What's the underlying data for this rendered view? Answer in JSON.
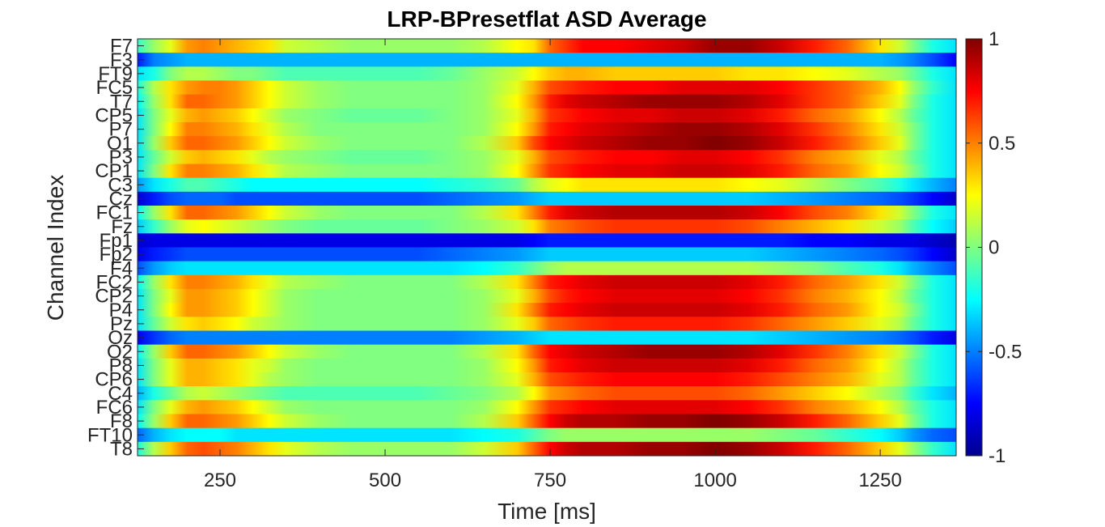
{
  "chart_data": {
    "type": "heatmap",
    "title": "LRP-BPresetflat ASD Average",
    "xlabel": "Time [ms]",
    "ylabel": "Channel Index",
    "xlim": [
      125,
      1365
    ],
    "xticks": [
      250,
      500,
      750,
      1000,
      1250
    ],
    "channels": [
      "F7",
      "F3",
      "FT9",
      "FC5",
      "T7",
      "CP5",
      "P7",
      "O1",
      "P3",
      "CP1",
      "C3",
      "Cz",
      "FC1",
      "Fz",
      "Fp1",
      "Fp2",
      "F4",
      "FC2",
      "CP2",
      "P4",
      "Pz",
      "Oz",
      "O2",
      "P8",
      "CP6",
      "C4",
      "FC6",
      "F8",
      "FT10",
      "T8"
    ],
    "colorbar": {
      "colormap": "jet",
      "clim": [
        -1,
        1
      ],
      "ticks": [
        1,
        0.5,
        0,
        -0.5,
        -1
      ],
      "tick_labels": [
        "1",
        "0.5",
        "0",
        "-0.5",
        "-1"
      ]
    },
    "time_points": [
      125,
      150,
      175,
      200,
      225,
      250,
      275,
      300,
      325,
      350,
      400,
      450,
      500,
      550,
      600,
      650,
      700,
      725,
      750,
      775,
      800,
      850,
      900,
      950,
      1000,
      1050,
      1100,
      1150,
      1200,
      1250,
      1280,
      1300,
      1330,
      1365
    ],
    "values": [
      [
        -0.15,
        0.05,
        0.2,
        0.45,
        0.5,
        0.45,
        0.4,
        0.35,
        0.3,
        0.15,
        0.1,
        0.05,
        0.05,
        0.05,
        0.05,
        0.1,
        0.25,
        0.3,
        0.55,
        0.65,
        0.75,
        0.75,
        0.8,
        0.85,
        0.95,
        0.95,
        0.85,
        0.7,
        0.55,
        0.3,
        0.15,
        0.0,
        -0.2,
        -0.3
      ],
      [
        -0.7,
        -0.5,
        -0.45,
        -0.4,
        -0.4,
        -0.4,
        -0.4,
        -0.4,
        -0.4,
        -0.4,
        -0.4,
        -0.4,
        -0.4,
        -0.4,
        -0.4,
        -0.4,
        -0.4,
        -0.4,
        -0.4,
        -0.4,
        -0.4,
        -0.4,
        -0.4,
        -0.4,
        -0.4,
        -0.4,
        -0.4,
        -0.4,
        -0.4,
        -0.4,
        -0.45,
        -0.5,
        -0.6,
        -0.75
      ],
      [
        -0.3,
        -0.2,
        0.0,
        0.1,
        0.1,
        0.05,
        0.0,
        0.0,
        -0.05,
        -0.1,
        -0.1,
        -0.1,
        -0.1,
        -0.1,
        -0.05,
        0.05,
        0.15,
        0.25,
        0.35,
        0.4,
        0.4,
        0.35,
        0.35,
        0.35,
        0.35,
        0.3,
        0.3,
        0.25,
        0.2,
        0.1,
        0.05,
        -0.05,
        -0.2,
        -0.3
      ],
      [
        -0.2,
        0.1,
        0.3,
        0.45,
        0.5,
        0.5,
        0.45,
        0.35,
        0.25,
        0.15,
        0.05,
        0.0,
        0.0,
        0.0,
        0.0,
        0.05,
        0.2,
        0.4,
        0.6,
        0.65,
        0.7,
        0.75,
        0.75,
        0.8,
        0.8,
        0.8,
        0.75,
        0.65,
        0.55,
        0.4,
        0.25,
        0.05,
        -0.15,
        -0.3
      ],
      [
        -0.25,
        0.05,
        0.3,
        0.55,
        0.55,
        0.5,
        0.45,
        0.35,
        0.25,
        0.15,
        0.05,
        0.0,
        0.0,
        0.0,
        0.0,
        0.05,
        0.25,
        0.45,
        0.7,
        0.8,
        0.85,
        0.9,
        0.95,
        0.95,
        0.95,
        0.9,
        0.8,
        0.65,
        0.55,
        0.35,
        0.2,
        0.0,
        -0.2,
        -0.3
      ],
      [
        -0.3,
        0.0,
        0.2,
        0.4,
        0.45,
        0.4,
        0.35,
        0.25,
        0.15,
        0.05,
        0.0,
        -0.05,
        -0.05,
        -0.05,
        0.0,
        0.05,
        0.2,
        0.4,
        0.65,
        0.7,
        0.75,
        0.8,
        0.8,
        0.85,
        0.85,
        0.8,
        0.7,
        0.55,
        0.45,
        0.25,
        0.1,
        -0.05,
        -0.2,
        -0.3
      ],
      [
        -0.3,
        0.0,
        0.25,
        0.5,
        0.5,
        0.45,
        0.4,
        0.3,
        0.2,
        0.1,
        0.0,
        0.0,
        0.0,
        0.0,
        0.0,
        0.05,
        0.25,
        0.45,
        0.7,
        0.75,
        0.8,
        0.85,
        0.9,
        0.95,
        0.95,
        0.9,
        0.8,
        0.65,
        0.5,
        0.3,
        0.15,
        0.0,
        -0.2,
        -0.3
      ],
      [
        -0.3,
        0.05,
        0.35,
        0.55,
        0.55,
        0.5,
        0.45,
        0.35,
        0.25,
        0.15,
        0.05,
        0.0,
        0.0,
        0.0,
        0.0,
        0.1,
        0.35,
        0.6,
        0.75,
        0.8,
        0.85,
        0.9,
        0.95,
        0.95,
        1.0,
        0.95,
        0.85,
        0.7,
        0.55,
        0.35,
        0.2,
        0.0,
        -0.2,
        -0.3
      ],
      [
        -0.3,
        -0.05,
        0.15,
        0.35,
        0.4,
        0.35,
        0.3,
        0.2,
        0.1,
        0.05,
        0.0,
        -0.05,
        -0.05,
        -0.05,
        0.0,
        0.05,
        0.2,
        0.4,
        0.6,
        0.65,
        0.7,
        0.75,
        0.75,
        0.8,
        0.8,
        0.75,
        0.65,
        0.5,
        0.4,
        0.2,
        0.1,
        -0.05,
        -0.2,
        -0.3
      ],
      [
        -0.3,
        0.0,
        0.3,
        0.5,
        0.5,
        0.45,
        0.4,
        0.3,
        0.2,
        0.1,
        0.05,
        0.0,
        0.0,
        0.0,
        0.0,
        0.05,
        0.25,
        0.45,
        0.65,
        0.7,
        0.75,
        0.8,
        0.8,
        0.85,
        0.85,
        0.8,
        0.7,
        0.55,
        0.45,
        0.25,
        0.15,
        0.0,
        -0.2,
        -0.3
      ],
      [
        -0.45,
        -0.3,
        -0.2,
        -0.1,
        -0.1,
        -0.15,
        -0.2,
        -0.25,
        -0.25,
        -0.25,
        -0.25,
        -0.25,
        -0.25,
        -0.25,
        -0.2,
        -0.15,
        -0.05,
        0.1,
        0.2,
        0.25,
        0.3,
        0.3,
        0.3,
        0.3,
        0.3,
        0.25,
        0.2,
        0.1,
        0.0,
        -0.1,
        -0.2,
        -0.3,
        -0.4,
        -0.5
      ],
      [
        -0.85,
        -0.7,
        -0.6,
        -0.55,
        -0.55,
        -0.55,
        -0.6,
        -0.6,
        -0.6,
        -0.6,
        -0.6,
        -0.6,
        -0.6,
        -0.6,
        -0.55,
        -0.5,
        -0.45,
        -0.4,
        -0.35,
        -0.35,
        -0.35,
        -0.35,
        -0.35,
        -0.35,
        -0.35,
        -0.35,
        -0.4,
        -0.45,
        -0.5,
        -0.55,
        -0.6,
        -0.65,
        -0.75,
        -0.85
      ],
      [
        -0.25,
        0.05,
        0.3,
        0.55,
        0.55,
        0.5,
        0.45,
        0.35,
        0.25,
        0.15,
        0.05,
        0.0,
        0.0,
        0.0,
        0.0,
        0.1,
        0.3,
        0.5,
        0.7,
        0.8,
        0.85,
        0.9,
        0.9,
        0.9,
        0.9,
        0.85,
        0.75,
        0.6,
        0.5,
        0.3,
        0.15,
        0.0,
        -0.2,
        -0.3
      ],
      [
        -0.35,
        -0.15,
        0.05,
        0.2,
        0.25,
        0.2,
        0.15,
        0.1,
        0.05,
        0.0,
        -0.05,
        -0.05,
        -0.05,
        -0.05,
        0.0,
        0.05,
        0.15,
        0.3,
        0.5,
        0.55,
        0.6,
        0.65,
        0.65,
        0.65,
        0.65,
        0.6,
        0.5,
        0.4,
        0.3,
        0.15,
        0.05,
        -0.1,
        -0.25,
        -0.35
      ],
      [
        -0.85,
        -0.8,
        -0.8,
        -0.8,
        -0.8,
        -0.8,
        -0.8,
        -0.8,
        -0.8,
        -0.8,
        -0.8,
        -0.8,
        -0.8,
        -0.8,
        -0.8,
        -0.8,
        -0.8,
        -0.75,
        -0.7,
        -0.7,
        -0.7,
        -0.7,
        -0.7,
        -0.7,
        -0.7,
        -0.7,
        -0.7,
        -0.75,
        -0.75,
        -0.8,
        -0.8,
        -0.8,
        -0.85,
        -0.9
      ],
      [
        -0.8,
        -0.7,
        -0.65,
        -0.6,
        -0.6,
        -0.6,
        -0.6,
        -0.6,
        -0.6,
        -0.6,
        -0.6,
        -0.6,
        -0.6,
        -0.6,
        -0.55,
        -0.5,
        -0.45,
        -0.4,
        -0.35,
        -0.35,
        -0.35,
        -0.35,
        -0.35,
        -0.35,
        -0.35,
        -0.35,
        -0.4,
        -0.45,
        -0.5,
        -0.55,
        -0.6,
        -0.65,
        -0.75,
        -0.85
      ],
      [
        -0.6,
        -0.45,
        -0.35,
        -0.3,
        -0.3,
        -0.3,
        -0.3,
        -0.3,
        -0.3,
        -0.3,
        -0.3,
        -0.3,
        -0.3,
        -0.3,
        -0.3,
        -0.25,
        -0.15,
        -0.05,
        0.05,
        0.1,
        0.1,
        0.1,
        0.1,
        0.1,
        0.1,
        0.1,
        0.05,
        0.0,
        -0.1,
        -0.2,
        -0.3,
        -0.4,
        -0.5,
        -0.6
      ],
      [
        -0.25,
        0.05,
        0.3,
        0.5,
        0.5,
        0.45,
        0.4,
        0.3,
        0.2,
        0.1,
        0.05,
        0.0,
        0.0,
        0.0,
        0.0,
        0.1,
        0.3,
        0.5,
        0.7,
        0.75,
        0.8,
        0.85,
        0.85,
        0.85,
        0.85,
        0.8,
        0.7,
        0.55,
        0.45,
        0.3,
        0.15,
        0.0,
        -0.2,
        -0.3
      ],
      [
        -0.3,
        0.0,
        0.2,
        0.45,
        0.45,
        0.4,
        0.35,
        0.25,
        0.15,
        0.05,
        0.0,
        0.0,
        0.0,
        0.0,
        0.0,
        0.05,
        0.2,
        0.4,
        0.6,
        0.7,
        0.75,
        0.8,
        0.8,
        0.8,
        0.8,
        0.75,
        0.65,
        0.5,
        0.4,
        0.25,
        0.1,
        -0.05,
        -0.2,
        -0.3
      ],
      [
        -0.3,
        0.0,
        0.25,
        0.45,
        0.45,
        0.4,
        0.35,
        0.25,
        0.15,
        0.05,
        0.0,
        0.0,
        0.0,
        0.0,
        0.0,
        0.05,
        0.3,
        0.5,
        0.7,
        0.75,
        0.8,
        0.85,
        0.85,
        0.85,
        0.85,
        0.8,
        0.7,
        0.55,
        0.45,
        0.25,
        0.15,
        0.0,
        -0.2,
        -0.3
      ],
      [
        -0.3,
        -0.05,
        0.15,
        0.3,
        0.35,
        0.3,
        0.25,
        0.15,
        0.1,
        0.05,
        0.0,
        0.0,
        0.0,
        0.0,
        0.0,
        0.05,
        0.2,
        0.35,
        0.55,
        0.6,
        0.65,
        0.7,
        0.7,
        0.7,
        0.7,
        0.65,
        0.55,
        0.45,
        0.35,
        0.2,
        0.1,
        -0.05,
        -0.2,
        -0.3
      ],
      [
        -0.8,
        -0.65,
        -0.55,
        -0.5,
        -0.5,
        -0.5,
        -0.5,
        -0.5,
        -0.5,
        -0.5,
        -0.5,
        -0.5,
        -0.5,
        -0.5,
        -0.5,
        -0.45,
        -0.4,
        -0.35,
        -0.3,
        -0.3,
        -0.3,
        -0.3,
        -0.3,
        -0.3,
        -0.3,
        -0.3,
        -0.35,
        -0.4,
        -0.45,
        -0.5,
        -0.55,
        -0.6,
        -0.7,
        -0.8
      ],
      [
        -0.25,
        0.05,
        0.35,
        0.55,
        0.55,
        0.5,
        0.45,
        0.35,
        0.25,
        0.15,
        0.05,
        0.0,
        0.0,
        0.0,
        0.0,
        0.1,
        0.3,
        0.55,
        0.75,
        0.8,
        0.85,
        0.9,
        0.95,
        0.95,
        0.95,
        0.9,
        0.8,
        0.65,
        0.5,
        0.3,
        0.15,
        0.0,
        -0.2,
        -0.3
      ],
      [
        -0.3,
        0.0,
        0.2,
        0.4,
        0.4,
        0.35,
        0.3,
        0.2,
        0.15,
        0.05,
        0.0,
        0.0,
        0.0,
        0.0,
        0.0,
        0.05,
        0.25,
        0.45,
        0.7,
        0.75,
        0.8,
        0.85,
        0.85,
        0.85,
        0.85,
        0.8,
        0.7,
        0.55,
        0.45,
        0.25,
        0.1,
        -0.05,
        -0.2,
        -0.3
      ],
      [
        -0.3,
        0.0,
        0.2,
        0.4,
        0.4,
        0.35,
        0.3,
        0.2,
        0.1,
        0.05,
        0.0,
        0.0,
        0.0,
        0.0,
        0.0,
        0.05,
        0.2,
        0.4,
        0.6,
        0.65,
        0.7,
        0.75,
        0.75,
        0.75,
        0.75,
        0.7,
        0.6,
        0.5,
        0.4,
        0.2,
        0.1,
        -0.05,
        -0.2,
        -0.3
      ],
      [
        -0.4,
        -0.2,
        -0.05,
        0.1,
        0.15,
        0.1,
        0.05,
        0.0,
        -0.05,
        -0.1,
        -0.1,
        -0.1,
        -0.1,
        -0.1,
        -0.05,
        0.0,
        0.1,
        0.25,
        0.45,
        0.5,
        0.55,
        0.6,
        0.6,
        0.6,
        0.6,
        0.55,
        0.45,
        0.35,
        0.25,
        0.1,
        0.0,
        -0.15,
        -0.3,
        -0.4
      ],
      [
        -0.3,
        0.0,
        0.2,
        0.4,
        0.45,
        0.4,
        0.35,
        0.25,
        0.15,
        0.05,
        0.0,
        0.0,
        0.0,
        0.0,
        0.0,
        0.05,
        0.25,
        0.45,
        0.65,
        0.7,
        0.75,
        0.8,
        0.8,
        0.8,
        0.8,
        0.75,
        0.65,
        0.5,
        0.4,
        0.25,
        0.1,
        -0.05,
        -0.2,
        -0.3
      ],
      [
        -0.25,
        0.05,
        0.35,
        0.55,
        0.55,
        0.5,
        0.45,
        0.35,
        0.25,
        0.15,
        0.05,
        0.0,
        0.0,
        0.0,
        0.0,
        0.1,
        0.35,
        0.55,
        0.75,
        0.85,
        0.9,
        0.9,
        0.95,
        0.95,
        1.0,
        0.95,
        0.85,
        0.7,
        0.55,
        0.35,
        0.2,
        0.0,
        -0.2,
        -0.3
      ],
      [
        -0.55,
        -0.4,
        -0.3,
        -0.25,
        -0.25,
        -0.25,
        -0.3,
        -0.3,
        -0.3,
        -0.3,
        -0.3,
        -0.3,
        -0.3,
        -0.3,
        -0.3,
        -0.25,
        -0.2,
        -0.1,
        0.0,
        0.05,
        0.05,
        0.05,
        0.05,
        0.05,
        0.05,
        0.05,
        0.0,
        -0.05,
        -0.15,
        -0.25,
        -0.35,
        -0.45,
        -0.55,
        -0.6
      ],
      [
        -0.2,
        0.1,
        0.35,
        0.55,
        0.6,
        0.55,
        0.5,
        0.4,
        0.3,
        0.2,
        0.1,
        0.05,
        0.05,
        0.05,
        0.05,
        0.15,
        0.35,
        0.55,
        0.75,
        0.85,
        0.9,
        0.9,
        0.95,
        0.95,
        1.0,
        0.95,
        0.85,
        0.7,
        0.55,
        0.35,
        0.2,
        0.05,
        -0.15,
        -0.3
      ]
    ]
  }
}
